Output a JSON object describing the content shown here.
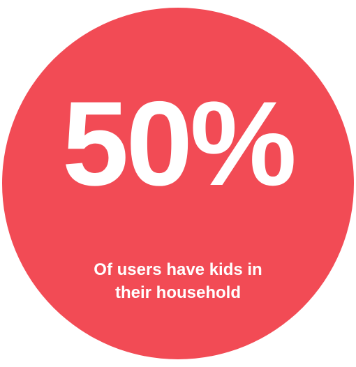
{
  "stat": {
    "value": "50%",
    "caption_line1": "Of users have kids in",
    "caption_line2": "their household"
  },
  "colors": {
    "circle": "#f24b55",
    "text": "#ffffff",
    "background": "#ffffff"
  }
}
